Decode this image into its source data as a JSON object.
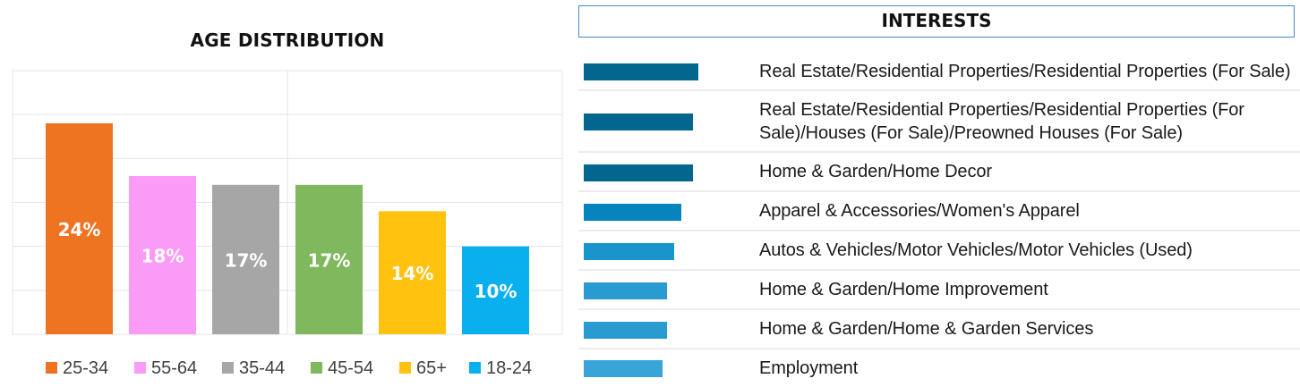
{
  "chart_data": [
    {
      "type": "bar",
      "title": "AGE DISTRIBUTION",
      "categories": [
        "25-34",
        "55-64",
        "35-44",
        "45-54",
        "65+",
        "18-24"
      ],
      "values": [
        24,
        18,
        17,
        17,
        14,
        10
      ],
      "value_labels": [
        "24%",
        "18%",
        "17%",
        "17%",
        "14%",
        "10%"
      ],
      "colors": [
        "#ee7421",
        "#fa9bf8",
        "#a6a6a6",
        "#7fb85d",
        "#ffc20e",
        "#0ab0ee"
      ],
      "xlabel": "",
      "ylabel": "",
      "ylim": [
        0,
        30
      ],
      "grid": true,
      "legend": "bottom"
    },
    {
      "type": "bar",
      "orientation": "horizontal",
      "title": "INTERESTS",
      "categories": [
        "Real Estate/Residential Properties/Residential Properties (For Sale)",
        "Real Estate/Residential Properties/Residential Properties (For Sale)/Houses (For Sale)/Preowned Houses (For Sale)",
        "Home & Garden/Home Decor",
        "Apparel & Accessories/Women's Apparel",
        "Autos & Vehicles/Motor Vehicles/Motor Vehicles (Used)",
        "Home & Garden/Home Improvement",
        "Home & Garden/Home & Garden Services",
        "Employment"
      ],
      "values": [
        128,
        122,
        122,
        109,
        101,
        93,
        93,
        88
      ],
      "colors": [
        "#03668f",
        "#03668f",
        "#03668f",
        "#0684bd",
        "#1896cc",
        "#2a9bd0",
        "#2a9bd0",
        "#38a4d8"
      ],
      "legend": "none"
    }
  ]
}
